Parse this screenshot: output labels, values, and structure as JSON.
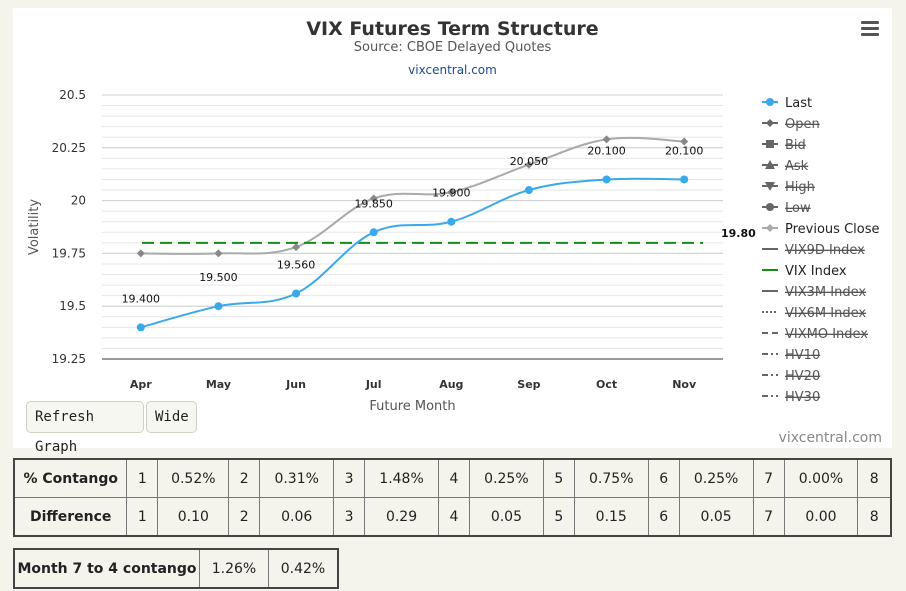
{
  "chart": {
    "title": "VIX Futures Term Structure",
    "subtitle": "Source: CBOE Delayed Quotes",
    "site_link": "vixcentral.com",
    "credit": "vixcentral.com"
  },
  "buttons": {
    "refresh": "Refresh Graph",
    "wide": "Wide"
  },
  "chart_data": {
    "type": "line",
    "xlabel": "Future Month",
    "ylabel": "Volatility",
    "categories": [
      "Apr",
      "May",
      "Jun",
      "Jul",
      "Aug",
      "Sep",
      "Oct",
      "Nov"
    ],
    "ylim": [
      19.25,
      20.5
    ],
    "yticks": [
      "19.25",
      "19.5",
      "19.75",
      "20",
      "20.25",
      "20.5"
    ],
    "grid": true,
    "legend_position": "right",
    "series": [
      {
        "name": "Last",
        "color": "#3aa9ea",
        "values": [
          19.4,
          19.5,
          19.56,
          19.85,
          19.9,
          20.05,
          20.1,
          20.1
        ],
        "labels": [
          "19.400",
          "19.500",
          "19.560",
          "19.850",
          "19.900",
          "20.050",
          "20.100",
          "20.100"
        ]
      },
      {
        "name": "Previous Close",
        "color": "#aaaaaa",
        "values": [
          19.75,
          19.75,
          19.78,
          20.01,
          20.04,
          20.17,
          20.29,
          20.28
        ]
      },
      {
        "name": "VIX Index",
        "color": "#188a18",
        "value": 19.8,
        "label": "19.80"
      }
    ],
    "legend": [
      {
        "name": "Last",
        "symbol": "circle",
        "color": "#3aa9ea",
        "hidden": false
      },
      {
        "name": "Open",
        "symbol": "diamond",
        "color": "#555555",
        "hidden": true
      },
      {
        "name": "Bid",
        "symbol": "square",
        "color": "#555555",
        "hidden": true
      },
      {
        "name": "Ask",
        "symbol": "triangle",
        "color": "#555555",
        "hidden": true
      },
      {
        "name": "High",
        "symbol": "triangle-down",
        "color": "#555555",
        "hidden": true
      },
      {
        "name": "Low",
        "symbol": "circle",
        "color": "#555555",
        "hidden": true
      },
      {
        "name": "Previous Close",
        "symbol": "diamond",
        "color": "#aaaaaa",
        "hidden": false
      },
      {
        "name": "VIX9D Index",
        "symbol": "line",
        "color": "#666666",
        "hidden": true
      },
      {
        "name": "VIX Index",
        "symbol": "line",
        "color": "#188a18",
        "hidden": false
      },
      {
        "name": "VIX3M Index",
        "symbol": "line",
        "color": "#666666",
        "hidden": true
      },
      {
        "name": "VIX6M Index",
        "symbol": "dotted",
        "color": "#666666",
        "hidden": true
      },
      {
        "name": "VIXMO Index",
        "symbol": "dashed",
        "color": "#666666",
        "hidden": true
      },
      {
        "name": "HV10",
        "symbol": "dashdot",
        "color": "#666666",
        "hidden": true
      },
      {
        "name": "HV20",
        "symbol": "dashdot",
        "color": "#666666",
        "hidden": true
      },
      {
        "name": "HV30",
        "symbol": "dashdot",
        "color": "#666666",
        "hidden": true
      }
    ]
  },
  "contango_table": {
    "rows": [
      {
        "label": "% Contango",
        "cells": [
          "1",
          "0.52%",
          "2",
          "0.31%",
          "3",
          "1.48%",
          "4",
          "0.25%",
          "5",
          "0.75%",
          "6",
          "0.25%",
          "7",
          "0.00%",
          "8"
        ]
      },
      {
        "label": "Difference",
        "cells": [
          "1",
          "0.10",
          "2",
          "0.06",
          "3",
          "0.29",
          "4",
          "0.05",
          "5",
          "0.15",
          "6",
          "0.05",
          "7",
          "0.00",
          "8"
        ]
      }
    ]
  },
  "month_table": {
    "label": "Month 7 to 4 contango",
    "values": [
      "1.26%",
      "0.42%"
    ]
  }
}
